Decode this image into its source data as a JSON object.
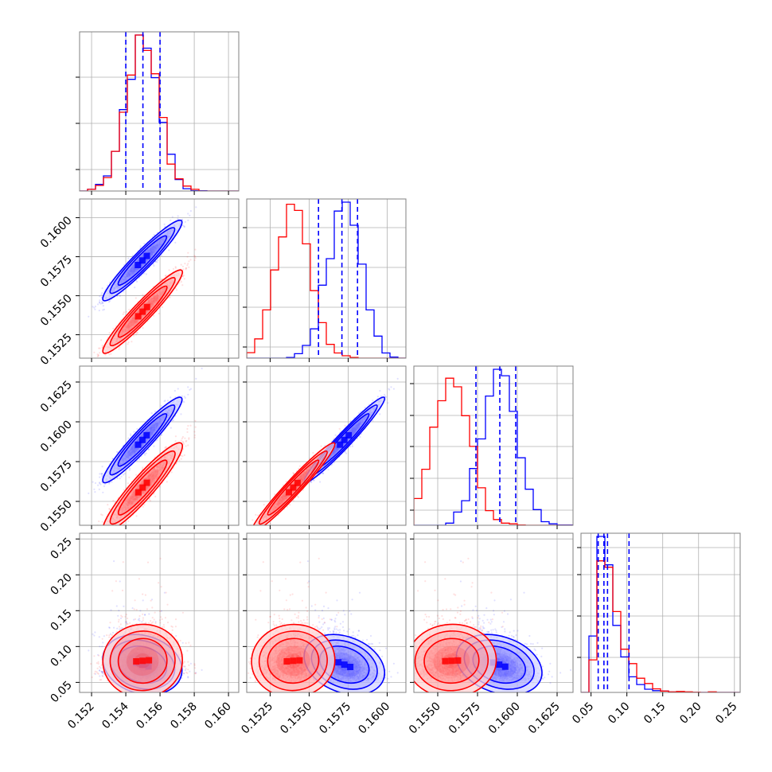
{
  "chart_data": {
    "type": "corner",
    "title": "",
    "grid": true,
    "colors": {
      "series_a": "#0000ff",
      "series_b": "#ff0000",
      "quantile_lines": "#0000ff"
    },
    "series": [
      {
        "key": "series_a",
        "means": [
          0.155,
          0.1573,
          0.1589,
          0.07
        ],
        "sds": [
          0.00095,
          0.00105,
          0.0011,
          0.018
        ],
        "corr": [
          [
            1,
            0.95,
            0.95,
            -0.2
          ],
          [
            0.95,
            1,
            0.97,
            -0.3
          ],
          [
            0.95,
            0.97,
            1,
            -0.3
          ],
          [
            -0.2,
            -0.3,
            -0.3,
            1
          ]
        ]
      },
      {
        "key": "series_b",
        "means": [
          0.155,
          0.154,
          0.1559,
          0.075
        ],
        "sds": [
          0.00095,
          0.0011,
          0.00115,
          0.03
        ],
        "corr": [
          [
            1,
            0.95,
            0.93,
            0.05
          ],
          [
            0.95,
            1,
            0.97,
            0.05
          ],
          [
            0.93,
            0.97,
            1,
            0.05
          ],
          [
            0.05,
            0.05,
            0.05,
            1
          ]
        ]
      }
    ],
    "panels": [
      {
        "kind": "hist",
        "row": 0,
        "col": 0
      },
      {
        "kind": "scatter-contour",
        "row": 1,
        "col": 0
      },
      {
        "kind": "hist",
        "row": 1,
        "col": 1
      },
      {
        "kind": "scatter-contour",
        "row": 2,
        "col": 0
      },
      {
        "kind": "scatter-contour",
        "row": 2,
        "col": 1
      },
      {
        "kind": "hist",
        "row": 2,
        "col": 2
      },
      {
        "kind": "scatter-contour",
        "row": 3,
        "col": 0
      },
      {
        "kind": "scatter-contour",
        "row": 3,
        "col": 1
      },
      {
        "kind": "scatter-contour",
        "row": 3,
        "col": 2
      },
      {
        "kind": "hist",
        "row": 3,
        "col": 3
      }
    ],
    "params": [
      {
        "range": [
          0.1513,
          0.1606
        ],
        "ticks": [
          0.152,
          0.154,
          0.156,
          0.158,
          0.16
        ],
        "tick_labels": [
          "0.152",
          "0.154",
          "0.156",
          "0.158",
          "0.160"
        ],
        "quantiles": [
          0.154,
          0.155,
          0.156
        ]
      },
      {
        "range": [
          0.151,
          0.1612
        ],
        "ticks": [
          0.1525,
          0.155,
          0.1575,
          0.16
        ],
        "tick_labels": [
          "0.1525",
          "0.1550",
          "0.1575",
          "0.1600"
        ],
        "quantiles": [
          0.1556,
          0.1571,
          0.1581
        ]
      },
      {
        "range": [
          0.1535,
          0.1635
        ],
        "ticks": [
          0.155,
          0.1575,
          0.16,
          0.1625
        ],
        "tick_labels": [
          "0.1550",
          "0.1575",
          "0.1600",
          "0.1625"
        ],
        "quantiles": [
          0.1574,
          0.1589,
          0.1599
        ]
      },
      {
        "range": [
          0.036,
          0.258
        ],
        "ticks": [
          0.05,
          0.1,
          0.15,
          0.2,
          0.25
        ],
        "tick_labels": [
          "0.05",
          "0.10",
          "0.15",
          "0.20",
          "0.25"
        ],
        "quantiles": [
          0.06,
          0.068,
          0.073,
          0.103
        ]
      }
    ],
    "hist_y_ticks": [
      [
        0.135,
        0.425,
        0.715
      ],
      [
        0.07,
        0.32,
        0.57,
        0.82
      ],
      [
        0.095,
        0.295,
        0.495,
        0.69,
        0.89
      ],
      [
        0.22,
        0.48,
        0.74,
        0.91
      ]
    ]
  }
}
